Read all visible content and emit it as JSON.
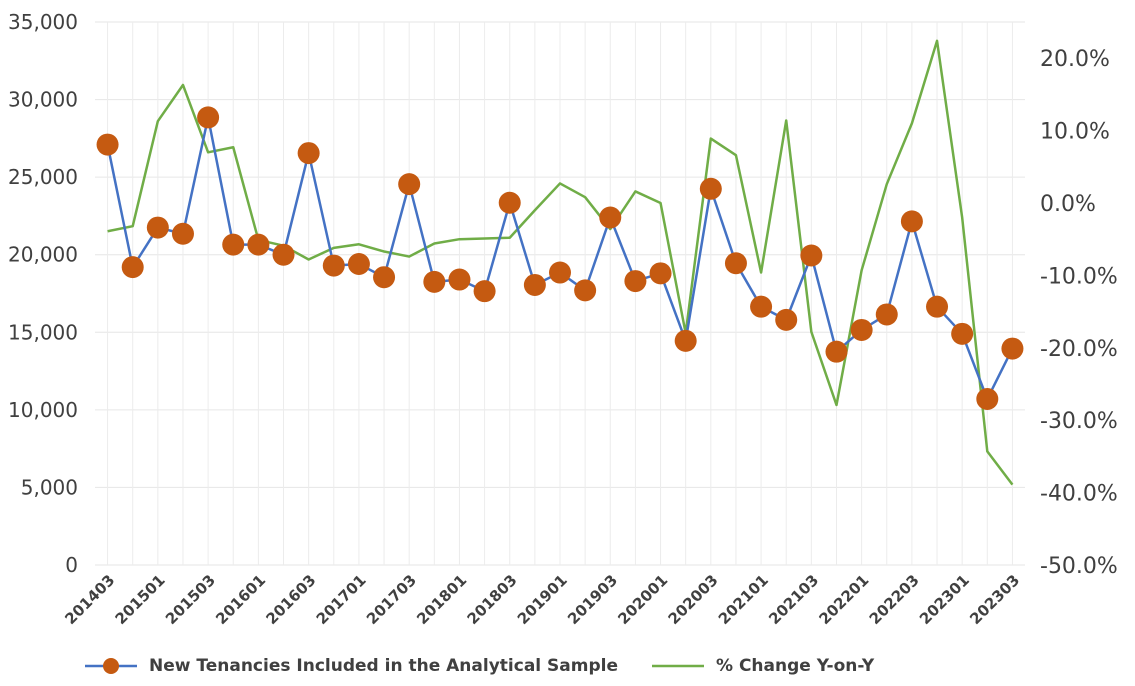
{
  "chart_data": {
    "type": "line",
    "x": [
      "201403",
      "201404",
      "201501",
      "201502",
      "201503",
      "201504",
      "201601",
      "201602",
      "201603",
      "201604",
      "201701",
      "201702",
      "201703",
      "201704",
      "201801",
      "201802",
      "201803",
      "201804",
      "201901",
      "201902",
      "201903",
      "201904",
      "202001",
      "202002",
      "202003",
      "202004",
      "202101",
      "202102",
      "202103",
      "202104",
      "202201",
      "202202",
      "202203",
      "202204",
      "202301",
      "202302",
      "202303"
    ],
    "x_tick_labels": [
      "201403",
      "201501",
      "201503",
      "201601",
      "201603",
      "201701",
      "201703",
      "201801",
      "201803",
      "201901",
      "201903",
      "202001",
      "202003",
      "202101",
      "202103",
      "202201",
      "202203",
      "202301",
      "202303"
    ],
    "series": [
      {
        "name": "New Tenancies Included in the Analytical Sample",
        "axis": "left",
        "color": "#4472C4",
        "marker_color": "#C55A11",
        "values": [
          27100,
          19200,
          21750,
          21350,
          28850,
          20650,
          20650,
          20000,
          26550,
          19300,
          19400,
          18550,
          24550,
          18250,
          18400,
          17650,
          23350,
          18050,
          18850,
          17700,
          22400,
          18300,
          18800,
          14450,
          24250,
          19450,
          16650,
          15800,
          19950,
          13750,
          15150,
          16150,
          22150,
          16650,
          14900,
          10700,
          13950
        ]
      },
      {
        "name": "% Change Y-on-Y",
        "axis": "right",
        "color": "#70AD47",
        "values": [
          -3.9,
          -3.2,
          11.3,
          16.3,
          7.0,
          7.7,
          -5.1,
          -5.9,
          -7.8,
          -6.2,
          -5.7,
          -6.7,
          -7.4,
          -5.6,
          -5.0,
          -4.9,
          -4.8,
          -1.0,
          2.7,
          0.8,
          -3.6,
          1.6,
          0.0,
          -18.0,
          8.9,
          6.6,
          -9.6,
          11.4,
          -17.8,
          -27.9,
          -9.3,
          2.6,
          11.0,
          22.4,
          -2.0,
          -34.3,
          -38.9
        ]
      }
    ],
    "y_left": {
      "min": 0,
      "max": 35000,
      "ticks": [
        "0",
        "5,000",
        "10,000",
        "15,000",
        "20,000",
        "25,000",
        "30,000",
        "35,000"
      ]
    },
    "y_right": {
      "min": -50,
      "max": 25,
      "ticks": [
        "-50.0%",
        "-40.0%",
        "-30.0%",
        "-20.0%",
        "-10.0%",
        "0.0%",
        "10.0%",
        "20.0%"
      ]
    },
    "grid": true,
    "legend_position": "bottom"
  }
}
